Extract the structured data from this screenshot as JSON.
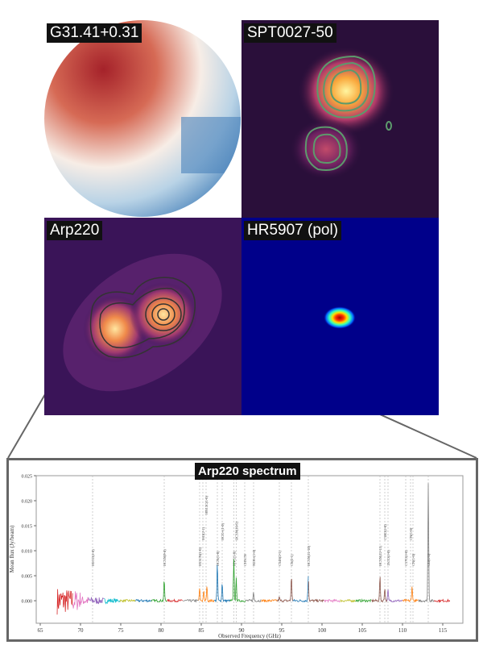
{
  "panels": [
    {
      "label": "G31.41+0.31"
    },
    {
      "label": "SPT0027-50"
    },
    {
      "label": "Arp220"
    },
    {
      "label": "HR5907 (pol)"
    }
  ],
  "chart_data": {
    "type": "line",
    "title": "Arp220 spectrum",
    "xlabel": "Observed Frequency (GHz)",
    "ylabel": "Mean flux (Jy/beam)",
    "xlim": [
      64.5,
      117.5
    ],
    "ylim": [
      -0.0045,
      0.025
    ],
    "xticks": [
      65,
      70,
      75,
      80,
      85,
      90,
      95,
      100,
      105,
      110,
      115
    ],
    "yticks": [
      "0.000",
      "0.005",
      "0.010",
      "0.015",
      "0.020",
      "0.025"
    ],
    "grid": false,
    "data_range": [
      67.1,
      115.9
    ],
    "peaks": [
      {
        "x": 80.4,
        "y": 0.0042
      },
      {
        "x": 84.8,
        "y": 0.0025
      },
      {
        "x": 85.3,
        "y": 0.002
      },
      {
        "x": 85.7,
        "y": 0.003
      },
      {
        "x": 87.0,
        "y": 0.0075
      },
      {
        "x": 87.6,
        "y": 0.0037
      },
      {
        "x": 89.05,
        "y": 0.0085
      },
      {
        "x": 89.35,
        "y": 0.0044
      },
      {
        "x": 91.5,
        "y": 0.0017
      },
      {
        "x": 94.7,
        "y": 0.0007
      },
      {
        "x": 96.2,
        "y": 0.005
      },
      {
        "x": 98.3,
        "y": 0.005
      },
      {
        "x": 107.2,
        "y": 0.0049
      },
      {
        "x": 107.8,
        "y": 0.0027
      },
      {
        "x": 108.2,
        "y": 0.0022
      },
      {
        "x": 111.2,
        "y": 0.0029
      },
      {
        "x": 113.2,
        "y": 0.0235
      }
    ],
    "lines": [
      {
        "x": 71.5,
        "label": "H2CO(1-0)"
      },
      {
        "x": 80.4,
        "label": "HC3N(9-8)"
      },
      {
        "x": 84.8,
        "label": "H13CN(1-0)"
      },
      {
        "x": 85.2,
        "label": "SiO(2-1)"
      },
      {
        "x": 85.6,
        "label": "HN13C(1-0)"
      },
      {
        "x": 87.0,
        "label": "HCN(1-0)"
      },
      {
        "x": 87.6,
        "label": "HCO+(1-0)"
      },
      {
        "x": 89.05,
        "label": "HNC(1-0)"
      },
      {
        "x": 89.35,
        "label": "HC3N(10-9)"
      },
      {
        "x": 90.4,
        "label": "CH3CN"
      },
      {
        "x": 91.5,
        "label": "N2H+(1-0)"
      },
      {
        "x": 94.7,
        "label": "C34S(2-1)"
      },
      {
        "x": 96.2,
        "label": "CS(2-1)"
      },
      {
        "x": 98.3,
        "label": "HC3N(11-10)"
      },
      {
        "x": 107.2,
        "label": "HC3N(12-11)"
      },
      {
        "x": 107.8,
        "label": "C18O(1-0)"
      },
      {
        "x": 108.2,
        "label": "13CO(1-0)"
      },
      {
        "x": 110.4,
        "label": "C17O(1-0)"
      },
      {
        "x": 111.0,
        "label": "CN(1-0)"
      },
      {
        "x": 111.3,
        "label": "CN(1-0)"
      },
      {
        "x": 113.2,
        "label": "CO(1-0)"
      }
    ],
    "segment_colors": [
      "#d62728",
      "#e377c2",
      "#9467bd",
      "#17becf",
      "#bcbd22",
      "#1f77b4",
      "#2ca02c",
      "#d62728",
      "#7f7f7f",
      "#ff7f0e",
      "#1f77b4",
      "#2ca02c",
      "#7f7f7f",
      "#ff7f0e",
      "#8c564b",
      "#1f77b4",
      "#8c564b",
      "#e377c2",
      "#bcbd22",
      "#2ca02c",
      "#8c564b",
      "#9467bd",
      "#ff7f0e",
      "#7f7f7f",
      "#d62728"
    ]
  }
}
